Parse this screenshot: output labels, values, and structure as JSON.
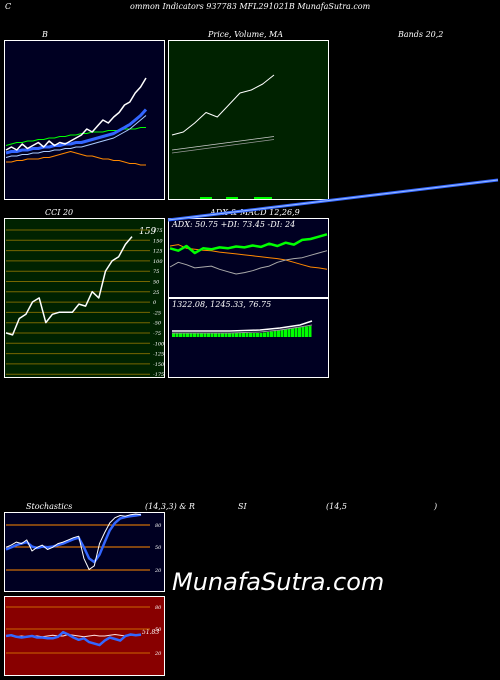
{
  "header": {
    "left": "C",
    "title": "ommon  Indicators 937783 MFL291021B MunafaSutra.com"
  },
  "panel_titles": {
    "b": "B",
    "price": "Price,  Volume,   MA",
    "bands": "Bands 20,2",
    "cci": "CCI 20",
    "adx": "ADX  & MACD 12,26,9",
    "stoch_left": "Stochastics",
    "stoch_params": "(14,3,3) & R",
    "rsi": "SI",
    "rsi_params": "(14,5",
    "rsi_close": ")"
  },
  "cci": {
    "value_label": "159",
    "ticks": [
      "175",
      "150",
      "125",
      "100",
      "75",
      "50",
      "25",
      "0",
      "-25",
      "-50",
      "-75",
      "-100",
      "-125",
      "-150",
      "-175"
    ]
  },
  "adx": {
    "readout": "ADX: 50.75  +DI: 73.45 -DI: 24",
    "macd_readout": "1322.08,   1245.33,   76.75"
  },
  "stoch": {
    "ticks": [
      "80",
      "50",
      "20"
    ]
  },
  "rsi": {
    "ticks": [
      "80",
      "50",
      "20"
    ],
    "value_label": "51.83"
  },
  "watermark": "MunafaSutra.com",
  "colors": {
    "panel_bg_blue": "#000022",
    "panel_bg_green": "#002200",
    "rsi_bg": "#880000",
    "price_line": "#ffffff",
    "ma_blue": "#3366ff",
    "orange": "#ff8800",
    "green": "#00ff00"
  },
  "chart_data": [
    {
      "type": "line",
      "title": "B",
      "series": [
        {
          "values": [
            30,
            32,
            30,
            34,
            31,
            33,
            35,
            32,
            36,
            33,
            35,
            34,
            36,
            38,
            40,
            44,
            42,
            46,
            50,
            48,
            52,
            55,
            60,
            62,
            68,
            72,
            78
          ]
        },
        {
          "values": [
            28,
            29,
            29,
            30,
            30,
            31,
            31,
            32,
            32,
            33,
            33,
            34,
            34,
            35,
            35,
            36,
            37,
            38,
            39,
            40,
            41,
            43,
            45,
            47,
            50,
            53,
            57
          ]
        },
        {
          "values": [
            25,
            26,
            26,
            27,
            27,
            28,
            28,
            29,
            29,
            30,
            30,
            31,
            31,
            32,
            32,
            33,
            34,
            35,
            36,
            37,
            38,
            40,
            42,
            44,
            47,
            50,
            53
          ]
        },
        {
          "values": [
            33,
            34,
            35,
            35,
            36,
            36,
            37,
            37,
            38,
            38,
            39,
            39,
            40,
            40,
            41,
            41,
            42,
            42,
            42,
            43,
            43,
            43,
            44,
            44,
            44,
            45,
            45
          ]
        },
        {
          "values": [
            22,
            22,
            23,
            23,
            24,
            24,
            24,
            25,
            25,
            26,
            27,
            28,
            29,
            28,
            27,
            26,
            26,
            25,
            24,
            24,
            23,
            23,
            22,
            21,
            21,
            20,
            20
          ]
        }
      ]
    },
    {
      "type": "line",
      "title": "Price, Volume, MA",
      "series": [
        {
          "values": [
            40,
            42,
            48,
            55,
            52,
            60,
            68,
            70,
            74,
            80
          ]
        },
        {
          "values": [
            30,
            31,
            32,
            33,
            34,
            35,
            36,
            37,
            38,
            39
          ]
        },
        {
          "values": [
            28,
            29,
            30,
            31,
            32,
            33,
            34,
            35,
            36,
            37
          ]
        }
      ]
    },
    {
      "type": "line",
      "title": "Bands 20,2",
      "series": [
        {
          "values": [
            20,
            21,
            22,
            23,
            24,
            25,
            26,
            27,
            28,
            29,
            30,
            31,
            32,
            33,
            34,
            35,
            36,
            37,
            38,
            39,
            40
          ]
        }
      ]
    },
    {
      "type": "line",
      "title": "CCI 20",
      "ylim": [
        -175,
        175
      ],
      "series": [
        {
          "values": [
            -75,
            -80,
            -40,
            -30,
            0,
            10,
            -50,
            -30,
            -25,
            -25,
            -25,
            -5,
            -10,
            25,
            10,
            75,
            100,
            110,
            140,
            159
          ]
        }
      ]
    },
    {
      "type": "line",
      "title": "ADX & MACD 12,26,9",
      "series": [
        {
          "values": [
            100,
            95,
            105,
            90,
            100,
            98,
            102,
            100,
            104,
            102,
            106,
            103,
            110,
            105,
            112,
            108,
            118,
            120,
            125,
            130
          ]
        },
        {
          "values": [
            105,
            108,
            100,
            98,
            96,
            95,
            92,
            90,
            88,
            86,
            84,
            82,
            80,
            78,
            75,
            70,
            65,
            60,
            58,
            55
          ]
        },
        {
          "values": [
            60,
            70,
            65,
            58,
            60,
            62,
            55,
            50,
            45,
            48,
            52,
            58,
            62,
            70,
            75,
            78,
            80,
            85,
            90,
            95
          ]
        }
      ]
    },
    {
      "type": "line",
      "title": "Stochastics (14,3,3)",
      "ylim": [
        0,
        100
      ],
      "series": [
        {
          "values": [
            55,
            58,
            62,
            60,
            65,
            50,
            55,
            58,
            52,
            55,
            60,
            62,
            65,
            68,
            70,
            40,
            25,
            30,
            60,
            75,
            88,
            95,
            98,
            97,
            99,
            100,
            99
          ]
        },
        {
          "values": [
            52,
            55,
            58,
            60,
            62,
            56,
            54,
            56,
            55,
            56,
            58,
            60,
            63,
            66,
            68,
            55,
            40,
            35,
            45,
            62,
            78,
            88,
            94,
            96,
            97,
            98,
            99
          ]
        }
      ]
    },
    {
      "type": "line",
      "title": "RSI (14,5)",
      "ylim": [
        0,
        100
      ],
      "series": [
        {
          "values": [
            50,
            50,
            49,
            50,
            49,
            50,
            50,
            49,
            50,
            51,
            50,
            50,
            52,
            51,
            50,
            49,
            50,
            51,
            50,
            50,
            51,
            52,
            51,
            50,
            51,
            52,
            52
          ]
        },
        {
          "values": [
            50,
            51,
            49,
            48,
            49,
            50,
            48,
            48,
            47,
            47,
            49,
            55,
            52,
            48,
            45,
            47,
            42,
            40,
            38,
            44,
            48,
            46,
            44,
            50,
            52,
            51,
            51.83
          ]
        }
      ]
    }
  ]
}
